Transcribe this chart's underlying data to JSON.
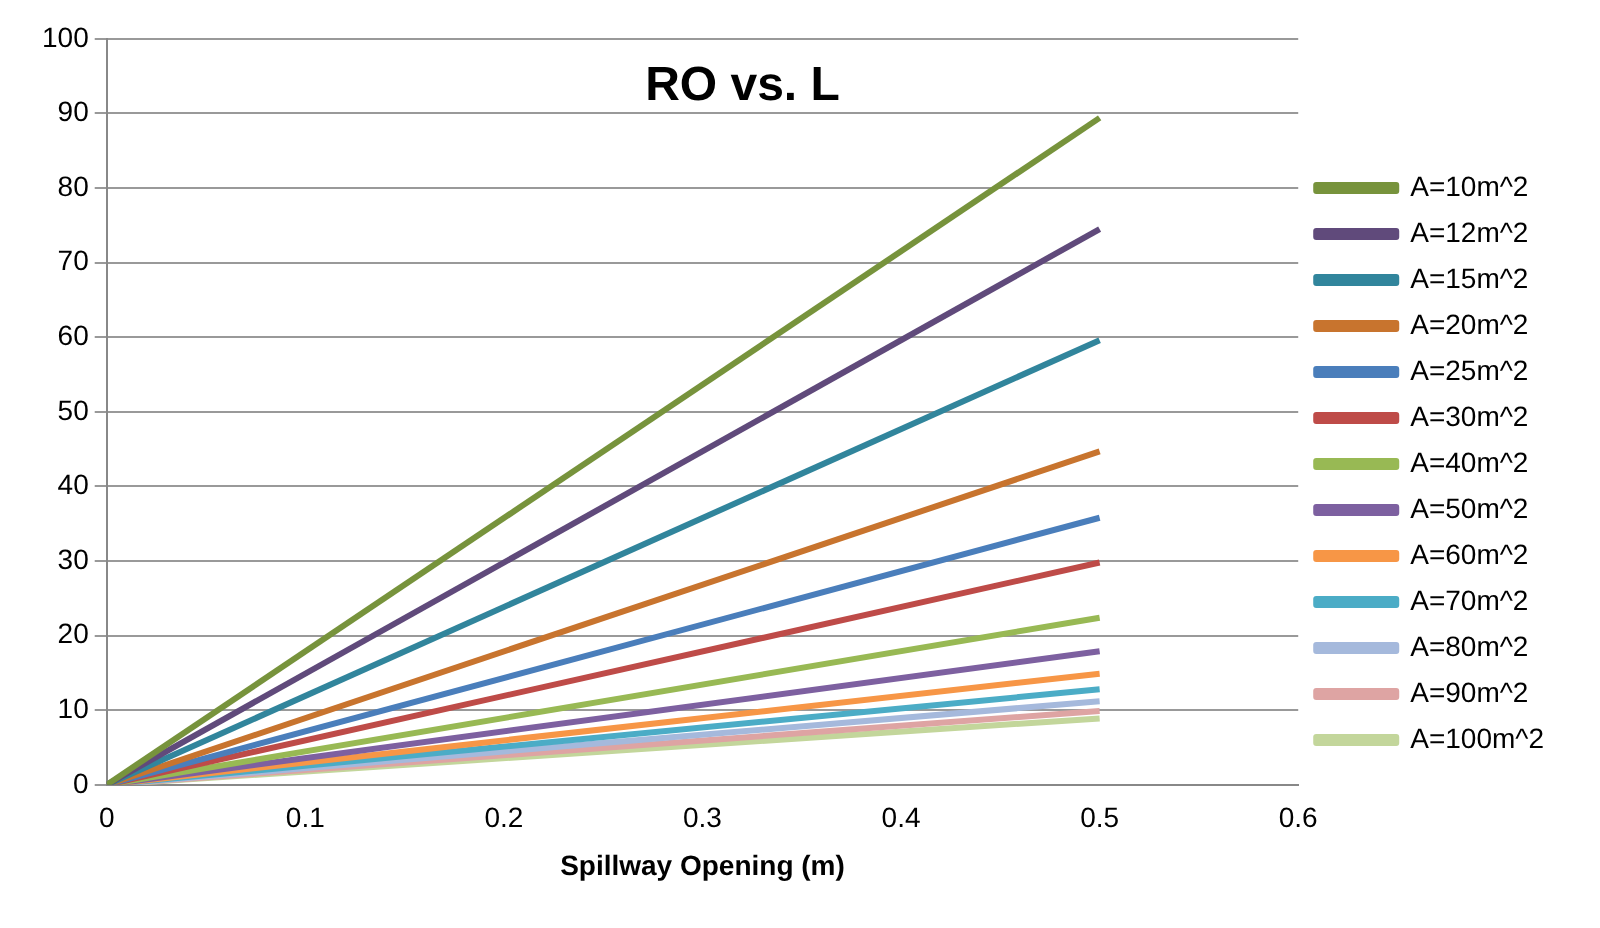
{
  "chart_data": {
    "type": "line",
    "title": "RO vs. L",
    "xlabel": "Spillway Opening (m)",
    "x": [
      0,
      0.5
    ],
    "xlim": [
      0,
      0.6
    ],
    "xticks": [
      0,
      0.1,
      0.2,
      0.3,
      0.4,
      0.5,
      0.6
    ],
    "ylim": [
      0,
      100
    ],
    "yticks": [
      0,
      10,
      20,
      30,
      40,
      50,
      60,
      70,
      80,
      90,
      100
    ],
    "grid": "y",
    "legend": "right",
    "marker": "none",
    "line_style": "solid",
    "series": [
      {
        "name": "A=10m^2",
        "color": "#77933c",
        "values": [
          0,
          89.4
        ]
      },
      {
        "name": "A=12m^2",
        "color": "#604a7b",
        "values": [
          0,
          74.5
        ]
      },
      {
        "name": "A=15m^2",
        "color": "#31859c",
        "values": [
          0,
          59.6
        ]
      },
      {
        "name": "A=20m^2",
        "color": "#c8742e",
        "values": [
          0,
          44.7
        ]
      },
      {
        "name": "A=25m^2",
        "color": "#4a7ebb",
        "values": [
          0,
          35.8
        ]
      },
      {
        "name": "A=30m^2",
        "color": "#be4b48",
        "values": [
          0,
          29.8
        ]
      },
      {
        "name": "A=40m^2",
        "color": "#98b954",
        "values": [
          0,
          22.4
        ]
      },
      {
        "name": "A=50m^2",
        "color": "#7d60a0",
        "values": [
          0,
          17.9
        ]
      },
      {
        "name": "A=60m^2",
        "color": "#f79646",
        "values": [
          0,
          14.9
        ]
      },
      {
        "name": "A=70m^2",
        "color": "#4bacc6",
        "values": [
          0,
          12.8
        ]
      },
      {
        "name": "A=80m^2",
        "color": "#a5b9dc",
        "values": [
          0,
          11.2
        ]
      },
      {
        "name": "A=90m^2",
        "color": "#dea4a3",
        "values": [
          0,
          9.9
        ]
      },
      {
        "name": "A=100m^2",
        "color": "#c3d69b",
        "values": [
          0,
          8.9
        ]
      }
    ]
  }
}
